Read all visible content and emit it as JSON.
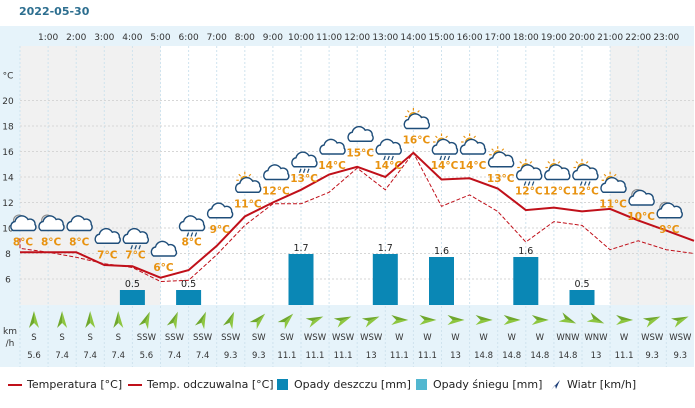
{
  "date_title": "2022-05-30",
  "chart_data": {
    "type": "line",
    "hours": [
      "1:00",
      "2:00",
      "3:00",
      "4:00",
      "5:00",
      "6:00",
      "7:00",
      "8:00",
      "9:00",
      "10:00",
      "11:00",
      "12:00",
      "13:00",
      "14:00",
      "15:00",
      "16:00",
      "17:00",
      "18:00",
      "19:00",
      "20:00",
      "21:00",
      "22:00",
      "23:00"
    ],
    "temperature_labels": [
      "8°C",
      "8°C",
      "8°C",
      "7°C",
      "7°C",
      "6°C",
      "8°C",
      "9°C",
      "11°C",
      "12°C",
      "13°C",
      "14°C",
      "15°C",
      "14°C",
      "16°C",
      "14°C",
      "14°C",
      "13°C",
      "12°C",
      "12°C",
      "12°C",
      "11°C",
      "10°C",
      "9°C"
    ],
    "temperature_series": [
      8.1,
      8.1,
      8.1,
      8.1,
      7.1,
      7.0,
      6.1,
      6.7,
      8.6,
      10.9,
      12.0,
      13.0,
      14.2,
      14.8,
      14.0,
      15.9,
      13.8,
      13.9,
      13.1,
      11.4,
      11.6,
      11.3,
      11.5,
      10.6,
      9.8,
      9.0
    ],
    "feels_like_series": [
      9.2,
      8.4,
      8.1,
      7.7,
      7.2,
      6.9,
      5.8,
      5.9,
      7.9,
      10.2,
      11.9,
      11.9,
      12.8,
      14.7,
      13.0,
      15.9,
      11.7,
      12.6,
      11.3,
      8.9,
      10.5,
      10.2,
      8.3,
      9.0,
      8.3,
      8.0
    ],
    "y_ticks": [
      "°C",
      "20",
      "18",
      "16",
      "14",
      "12",
      "10",
      "8",
      "6"
    ],
    "rain_labels": [
      "",
      "",
      "",
      "",
      "0.5",
      "",
      "0.5",
      "",
      "",
      "",
      "1.7",
      "",
      "",
      "1.7",
      "",
      "1.6",
      "",
      "",
      "1.6",
      "",
      "0.5",
      "",
      "",
      "",
      ""
    ],
    "rain_values": [
      0,
      0,
      0,
      0,
      0.5,
      0,
      0.5,
      0,
      0,
      0,
      1.7,
      0,
      0,
      1.7,
      0,
      1.6,
      0,
      0,
      1.6,
      0,
      0.5,
      0,
      0,
      0,
      0
    ],
    "wind_direction": [
      "S",
      "S",
      "S",
      "S",
      "SSW",
      "SSW",
      "SSW",
      "SSW",
      "SW",
      "SW",
      "WSW",
      "WSW",
      "WSW",
      "W",
      "W",
      "W",
      "W",
      "W",
      "W",
      "WNW",
      "WNW",
      "W",
      "WSW",
      "WSW"
    ],
    "wind_speed": [
      "5.6",
      "7.4",
      "7.4",
      "7.4",
      "5.6",
      "7.4",
      "7.4",
      "9.3",
      "9.3",
      "11.1",
      "11.1",
      "11.1",
      "13",
      "11.1",
      "11.1",
      "13",
      "14.8",
      "14.8",
      "14.8",
      "14.8",
      "13",
      "11.1",
      "9.3",
      "9.3"
    ],
    "wind_unit": [
      "km",
      "/h"
    ],
    "icons": [
      "moon-cloud-icon",
      "moon-cloud-icon",
      "cloud-icon",
      "cloud-icon",
      "rain-cloud-icon",
      "cloud-icon",
      "rain-cloud-icon",
      "cloud-icon",
      "sun-cloud-icon",
      "cloud-icon",
      "rain-cloud-icon",
      "cloud-icon",
      "cloud-icon",
      "rain-cloud-icon",
      "sun-cloud-icon",
      "sun-rain-cloud-icon",
      "sun-cloud-icon",
      "sun-cloud-icon",
      "sun-rain-cloud-icon",
      "sun-cloud-icon",
      "sun-rain-cloud-icon",
      "sun-cloud-icon",
      "moon-cloud-icon",
      "moon-cloud-icon"
    ],
    "colors": {
      "temperature": "#c0101a",
      "rain": "#0a87b5",
      "snow": "#52b7d0",
      "temp_label": "#e8920f",
      "wind_arrow": "#8dc63f"
    }
  },
  "legend": {
    "temperature": "Temperatura [°C]",
    "feels_like": "Temp. odczuwalna [°C]",
    "rain": "Opady deszczu [mm]",
    "snow": "Opady śniegu [mm]",
    "wind": "Wiatr [km/h]"
  }
}
